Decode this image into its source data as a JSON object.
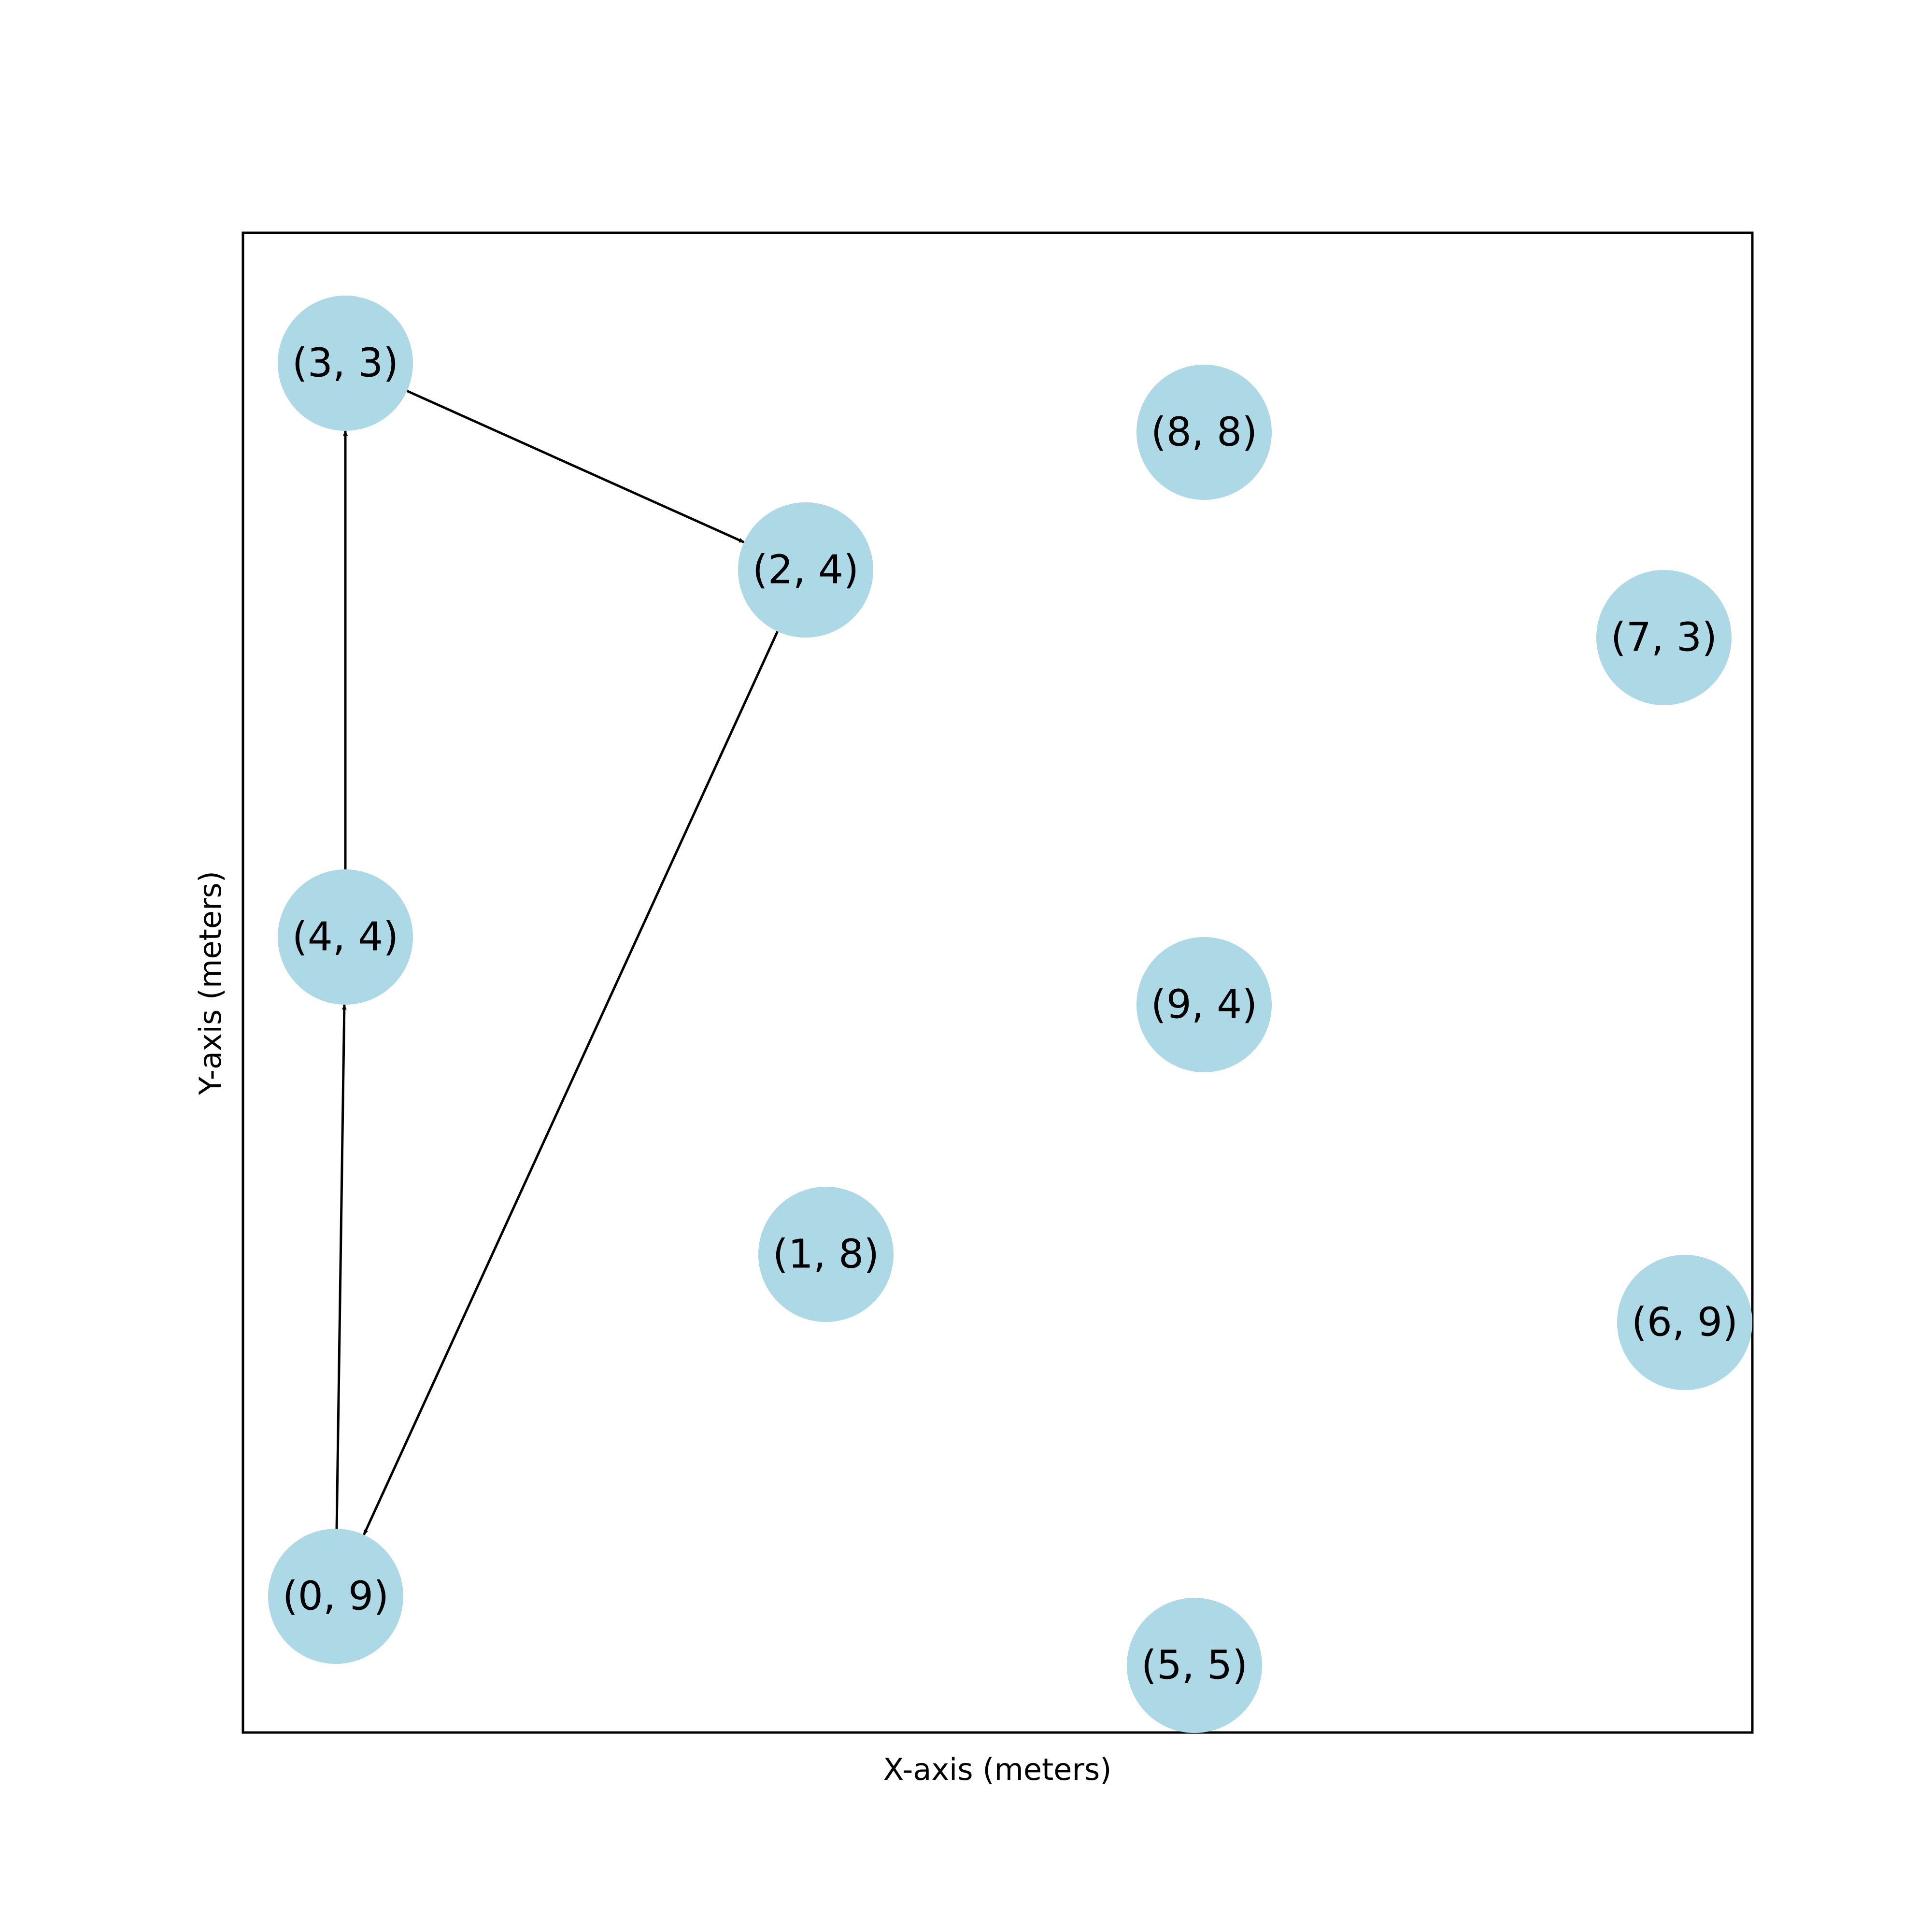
{
  "x_axis_label": "X-axis (meters)",
  "y_axis_label": "Y-axis (meters)",
  "node_color": "#add8e6",
  "edge_color": "#000000",
  "frame_color": "#000000",
  "nodes": [
    {
      "id": "n33",
      "label": "(3, 3)"
    },
    {
      "id": "n88",
      "label": "(8, 8)"
    },
    {
      "id": "n24",
      "label": "(2, 4)"
    },
    {
      "id": "n73",
      "label": "(7, 3)"
    },
    {
      "id": "n44",
      "label": "(4, 4)"
    },
    {
      "id": "n94",
      "label": "(9, 4)"
    },
    {
      "id": "n18",
      "label": "(1, 8)"
    },
    {
      "id": "n69",
      "label": "(6, 9)"
    },
    {
      "id": "n09",
      "label": "(0, 9)"
    },
    {
      "id": "n55",
      "label": "(5, 5)"
    }
  ],
  "edges": [
    {
      "from": "n09",
      "to": "n44"
    },
    {
      "from": "n44",
      "to": "n33"
    },
    {
      "from": "n33",
      "to": "n24"
    },
    {
      "from": "n24",
      "to": "n09"
    }
  ]
}
